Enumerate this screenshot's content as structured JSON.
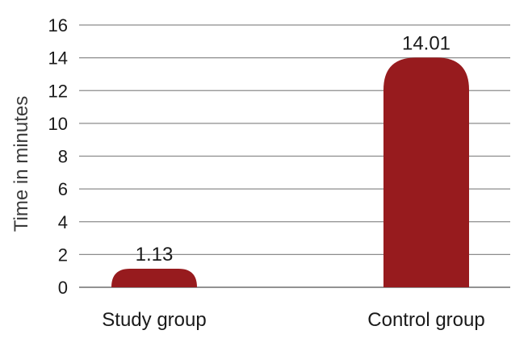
{
  "chart_data": {
    "type": "bar",
    "categories": [
      "Study group",
      "Control group"
    ],
    "values": [
      1.13,
      14.01
    ],
    "value_labels": [
      "1.13",
      "14.01"
    ],
    "title": "",
    "xlabel": "",
    "ylabel": "Time in minutes",
    "ylim": [
      0,
      16
    ],
    "yticks": [
      "0",
      "2",
      "4",
      "6",
      "8",
      "10",
      "12",
      "14",
      "16"
    ],
    "grid": true,
    "bar_color": "#971b1e"
  }
}
